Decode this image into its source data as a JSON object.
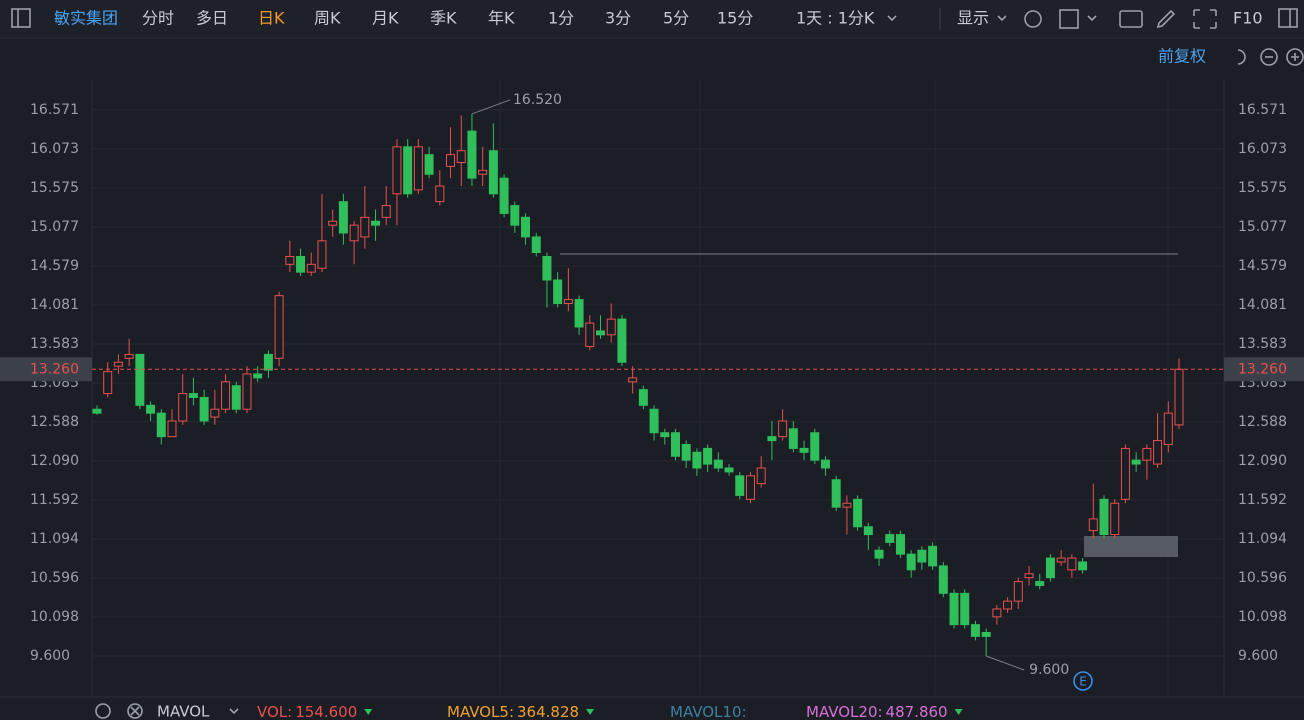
{
  "toolbar": {
    "symbol": "敏实集团",
    "tabs": [
      "分时",
      "多日",
      "日K",
      "周K",
      "月K",
      "季K",
      "年K",
      "1分",
      "3分",
      "5分",
      "15分"
    ],
    "active_tab": 2,
    "period": "1天 : 1分K",
    "display": "显示",
    "f10": "F10",
    "adjust": "前复权"
  },
  "chart_data": {
    "type": "candlestick",
    "up_color": "#e8514f",
    "down_color": "#2fbf5b",
    "ylim": [
      9.102,
      16.953
    ],
    "yticks": [
      {
        "value": 9.6,
        "label": "9.600"
      },
      10.098,
      10.596,
      11.094,
      11.592,
      {
        "value": 12.09,
        "label": "12.090"
      },
      12.588,
      13.085,
      13.583,
      14.081,
      14.579,
      15.077,
      15.575,
      16.073,
      16.571
    ],
    "grid": true,
    "current_price": {
      "value": 13.26,
      "label": "13.260"
    },
    "high_label": {
      "value": 16.52,
      "label": "16.520"
    },
    "low_label": {
      "value": 9.6,
      "label": "9.600"
    },
    "candles": [
      [
        12.75,
        12.8,
        12.68,
        12.7
      ],
      [
        12.95,
        13.35,
        12.9,
        13.23
      ],
      [
        13.3,
        13.45,
        13.2,
        13.35
      ],
      [
        13.4,
        13.65,
        13.3,
        13.45
      ],
      [
        13.45,
        13.45,
        12.75,
        12.8
      ],
      [
        12.8,
        12.85,
        12.6,
        12.7
      ],
      [
        12.7,
        12.75,
        12.3,
        12.4
      ],
      [
        12.4,
        12.75,
        12.4,
        12.6
      ],
      [
        12.6,
        13.2,
        12.55,
        12.95
      ],
      [
        12.95,
        13.15,
        12.8,
        12.9
      ],
      [
        12.9,
        13.0,
        12.55,
        12.6
      ],
      [
        12.65,
        13.0,
        12.55,
        12.75
      ],
      [
        12.75,
        13.2,
        12.7,
        13.1
      ],
      [
        13.05,
        13.1,
        12.7,
        12.75
      ],
      [
        12.75,
        13.3,
        12.7,
        13.2
      ],
      [
        13.2,
        13.3,
        13.1,
        13.15
      ],
      [
        13.45,
        13.5,
        13.15,
        13.25
      ],
      [
        13.4,
        14.25,
        13.3,
        14.2
      ],
      [
        14.6,
        14.9,
        14.5,
        14.7
      ],
      [
        14.7,
        14.8,
        14.45,
        14.5
      ],
      [
        14.5,
        14.75,
        14.45,
        14.6
      ],
      [
        14.55,
        15.5,
        14.5,
        14.9
      ],
      [
        15.1,
        15.3,
        14.95,
        15.15
      ],
      [
        15.4,
        15.5,
        14.85,
        15.0
      ],
      [
        14.9,
        15.15,
        14.6,
        15.1
      ],
      [
        14.95,
        15.6,
        14.8,
        15.2
      ],
      [
        15.15,
        15.3,
        14.9,
        15.1
      ],
      [
        15.2,
        15.6,
        15.1,
        15.35
      ],
      [
        15.5,
        16.2,
        15.1,
        16.1
      ],
      [
        16.1,
        16.2,
        15.45,
        15.5
      ],
      [
        15.55,
        16.2,
        15.5,
        16.1
      ],
      [
        16.0,
        16.1,
        15.7,
        15.75
      ],
      [
        15.4,
        15.8,
        15.35,
        15.6
      ],
      [
        15.85,
        16.35,
        15.7,
        16.0
      ],
      [
        15.9,
        16.5,
        15.6,
        16.05
      ],
      [
        16.3,
        16.52,
        15.6,
        15.7
      ],
      [
        15.75,
        16.1,
        15.6,
        15.8
      ],
      [
        16.05,
        16.4,
        15.45,
        15.5
      ],
      [
        15.7,
        15.75,
        15.2,
        15.25
      ],
      [
        15.35,
        15.4,
        15.0,
        15.1
      ],
      [
        15.2,
        15.25,
        14.85,
        14.95
      ],
      [
        14.95,
        15.0,
        14.7,
        14.75
      ],
      [
        14.7,
        14.75,
        14.05,
        14.4
      ],
      [
        14.4,
        14.5,
        14.05,
        14.1
      ],
      [
        14.1,
        14.55,
        14.0,
        14.15
      ],
      [
        14.15,
        14.2,
        13.7,
        13.8
      ],
      [
        13.55,
        13.95,
        13.5,
        13.85
      ],
      [
        13.75,
        13.95,
        13.65,
        13.7
      ],
      [
        13.7,
        14.1,
        13.6,
        13.9
      ],
      [
        13.9,
        13.95,
        13.3,
        13.35
      ],
      [
        13.1,
        13.3,
        12.95,
        13.15
      ],
      [
        13.0,
        13.05,
        12.75,
        12.8
      ],
      [
        12.75,
        12.8,
        12.35,
        12.45
      ],
      [
        12.45,
        12.5,
        12.3,
        12.4
      ],
      [
        12.45,
        12.5,
        12.1,
        12.15
      ],
      [
        12.3,
        12.35,
        12.0,
        12.1
      ],
      [
        12.2,
        12.25,
        11.9,
        12.0
      ],
      [
        12.25,
        12.3,
        11.95,
        12.05
      ],
      [
        12.1,
        12.2,
        11.95,
        12.0
      ],
      [
        12.0,
        12.05,
        11.9,
        11.95
      ],
      [
        11.9,
        11.95,
        11.6,
        11.65
      ],
      [
        11.6,
        11.95,
        11.55,
        11.9
      ],
      [
        11.8,
        12.15,
        11.75,
        12.0
      ],
      [
        12.4,
        12.6,
        12.1,
        12.35
      ],
      [
        12.4,
        12.75,
        12.35,
        12.6
      ],
      [
        12.5,
        12.6,
        12.2,
        12.25
      ],
      [
        12.25,
        12.35,
        12.1,
        12.2
      ],
      [
        12.45,
        12.5,
        12.05,
        12.1
      ],
      [
        12.1,
        12.15,
        11.9,
        12.0
      ],
      [
        11.85,
        11.9,
        11.45,
        11.5
      ],
      [
        11.5,
        11.65,
        11.15,
        11.55
      ],
      [
        11.6,
        11.65,
        11.2,
        11.25
      ],
      [
        11.25,
        11.3,
        10.95,
        11.15
      ],
      [
        10.95,
        11.0,
        10.75,
        10.85
      ],
      [
        11.15,
        11.2,
        11.0,
        11.05
      ],
      [
        11.15,
        11.2,
        10.85,
        10.9
      ],
      [
        10.9,
        10.95,
        10.6,
        10.7
      ],
      [
        10.95,
        11.0,
        10.7,
        10.8
      ],
      [
        11.0,
        11.05,
        10.7,
        10.75
      ],
      [
        10.75,
        10.8,
        10.35,
        10.4
      ],
      [
        10.4,
        10.45,
        9.95,
        10.0
      ],
      [
        10.4,
        10.45,
        9.95,
        10.0
      ],
      [
        10.0,
        10.05,
        9.8,
        9.85
      ],
      [
        9.9,
        9.95,
        9.6,
        9.85
      ],
      [
        10.1,
        10.25,
        10.0,
        10.2
      ],
      [
        10.2,
        10.35,
        10.15,
        10.3
      ],
      [
        10.3,
        10.6,
        10.2,
        10.55
      ],
      [
        10.6,
        10.75,
        10.5,
        10.65
      ],
      [
        10.55,
        10.65,
        10.45,
        10.5
      ],
      [
        10.85,
        10.9,
        10.55,
        10.6
      ],
      [
        10.8,
        10.95,
        10.75,
        10.85
      ],
      [
        10.7,
        10.9,
        10.6,
        10.85
      ],
      [
        10.8,
        10.85,
        10.65,
        10.7
      ],
      [
        11.2,
        11.8,
        11.1,
        11.35
      ],
      [
        11.6,
        11.65,
        11.1,
        11.15
      ],
      [
        11.15,
        11.6,
        11.1,
        11.55
      ],
      [
        11.6,
        12.3,
        11.55,
        12.25
      ],
      [
        12.1,
        12.2,
        11.95,
        12.05
      ],
      [
        12.1,
        12.3,
        11.85,
        12.25
      ],
      [
        12.05,
        12.7,
        12.0,
        12.35
      ],
      [
        12.3,
        12.85,
        12.2,
        12.7
      ],
      [
        12.55,
        13.4,
        12.5,
        13.26
      ]
    ]
  },
  "indicator": {
    "name": "MAVOL",
    "items": [
      {
        "label": "VOL:",
        "value": {
          "value": 154.6,
          "label": "154.600"
        },
        "color": "#e8514f"
      },
      {
        "label": "MAVOL5:",
        "value": 364.828,
        "color": "#f0a030"
      },
      {
        "label": "MAVOL10:",
        "color": "#3f7f9f"
      },
      {
        "label": "MAVOL20:",
        "value": {
          "value": 487.86,
          "label": "487.860"
        },
        "color": "#d86fd8"
      }
    ]
  }
}
